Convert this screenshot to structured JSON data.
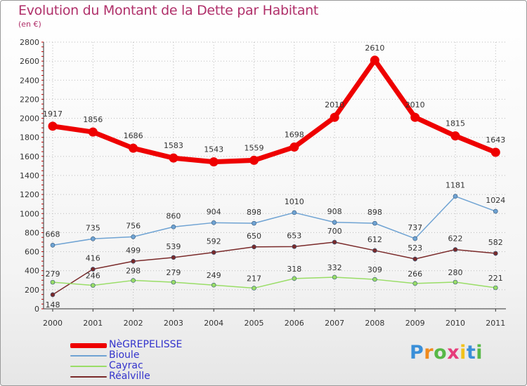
{
  "header": {
    "title": "Evolution du Montant de la Dette par Habitant",
    "subtitle": "(en €)"
  },
  "colors": {
    "title": "#b0306a",
    "axis": "#333333",
    "tick_mark": "#cc0000",
    "grid": "#bbbbbb",
    "legend_text": "#3333cc"
  },
  "chart_data": {
    "type": "line",
    "title": "Evolution du Montant de la Dette par Habitant",
    "subtitle": "(en €)",
    "xlabel": "",
    "ylabel": "",
    "x": [
      "2000",
      "2001",
      "2002",
      "2003",
      "2004",
      "2005",
      "2006",
      "2007",
      "2008",
      "2009",
      "2010",
      "2011"
    ],
    "ylim": [
      0,
      2800
    ],
    "yticks": [
      "0",
      "200",
      "400",
      "600",
      "800",
      "1000",
      "1200",
      "1400",
      "1600",
      "1800",
      "2000",
      "2200",
      "2400",
      "2600",
      "2800"
    ],
    "grid": true,
    "legend_position": "bottom-left",
    "series": [
      {
        "name": "NègrepelisseNèGREPELISSE",
        "color": "#ee0000",
        "width": 7,
        "marker": 6.5,
        "values": [
          1917,
          1856,
          1686,
          1583,
          1543,
          1559,
          1698,
          2010,
          2610,
          2010,
          1815,
          1643
        ],
        "labels": [
          "1917",
          "1856",
          "1686",
          "1583",
          "1543",
          "1559",
          "1698",
          "2010",
          "2610",
          "2010",
          "1815",
          "1643"
        ]
      },
      {
        "name": "Bioule",
        "color": "#6fa3d3",
        "width": 1.5,
        "marker": 3,
        "values": [
          668,
          735,
          756,
          860,
          904,
          898,
          1010,
          908,
          898,
          737,
          1181,
          1024
        ],
        "labels": [
          "668",
          "735",
          "756",
          "860",
          "904",
          "898",
          "1010",
          "908",
          "898",
          "737",
          "1181",
          "1024"
        ]
      },
      {
        "name": "Cayrac",
        "color": "#99dd66",
        "width": 1.5,
        "marker": 3,
        "values": [
          279,
          246,
          298,
          279,
          249,
          217,
          318,
          332,
          309,
          266,
          280,
          221
        ],
        "labels": [
          "279",
          "246",
          "298",
          "279",
          "249",
          "217",
          "318",
          "332",
          "309",
          "266",
          "280",
          "221"
        ]
      },
      {
        "name": "Réalville",
        "color": "#7a2a2a",
        "width": 1.5,
        "marker": 3,
        "values": [
          148,
          416,
          499,
          539,
          592,
          650,
          653,
          700,
          612,
          523,
          622,
          582
        ],
        "labels": [
          "148",
          "416",
          "499",
          "539",
          "592",
          "650",
          "653",
          "700",
          "612",
          "523",
          "622",
          "582"
        ]
      }
    ]
  },
  "legend": {
    "items": [
      {
        "label": "NèGREPELISSE",
        "color": "#ee0000"
      },
      {
        "label": "Bioule",
        "color": "#6fa3d3"
      },
      {
        "label": "Cayrac",
        "color": "#99dd66"
      },
      {
        "label": "Réalville",
        "color": "#7a2a2a"
      }
    ]
  },
  "logo": {
    "text": "Proxiti",
    "letters": [
      {
        "ch": "P",
        "color": "#3a8fd8"
      },
      {
        "ch": "r",
        "color": "#f08a1c"
      },
      {
        "ch": "o",
        "color": "#57b847"
      },
      {
        "ch": "x",
        "color": "#e63c7a"
      },
      {
        "ch": "i",
        "color": "#f2c21a"
      },
      {
        "ch": "t",
        "color": "#3a8fd8"
      },
      {
        "ch": "i",
        "color": "#57b847"
      }
    ]
  }
}
